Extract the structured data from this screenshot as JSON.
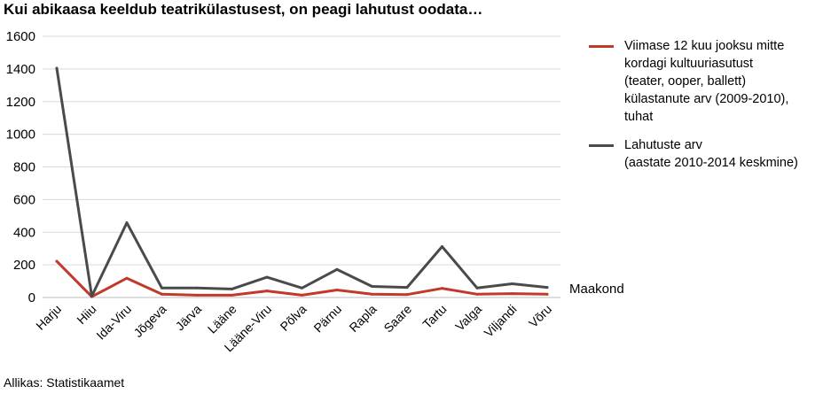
{
  "chart_data": {
    "type": "line",
    "title": "Kui abikaasa keeldub teatrikülastusest, on peagi lahutust oodata…",
    "xlabel": "Maakond",
    "ylabel": "",
    "source": "Allikas: Statistikaamet",
    "categories": [
      "Harju",
      "Hiiu",
      "Ida-Viru",
      "Jõgeva",
      "Järva",
      "Lääne",
      "Lääne-Viru",
      "Põlva",
      "Pärnu",
      "Rapla",
      "Saare",
      "Tartu",
      "Valga",
      "Viljandi",
      "Võru"
    ],
    "series": [
      {
        "name": "Viimase 12 kuu jooksu mitte\nkordagi kultuuriasutust\n(teater, ooper, ballett)\nkülastanute arv (2009-2010),\ntuhat",
        "color": "#c0392b",
        "values": [
          222,
          5,
          118,
          20,
          14,
          14,
          40,
          14,
          46,
          20,
          18,
          56,
          20,
          24,
          20
        ]
      },
      {
        "name": "Lahutuste arv\n(aastate 2010-2014 keskmine)",
        "color": "#4a4a4a",
        "values": [
          1405,
          8,
          458,
          58,
          58,
          52,
          124,
          58,
          172,
          68,
          62,
          312,
          58,
          84,
          62
        ]
      }
    ],
    "ylim": [
      0,
      1600
    ],
    "yticks": [
      0,
      200,
      400,
      600,
      800,
      1000,
      1200,
      1400,
      1600
    ],
    "grid": true,
    "legend_position": "right"
  }
}
